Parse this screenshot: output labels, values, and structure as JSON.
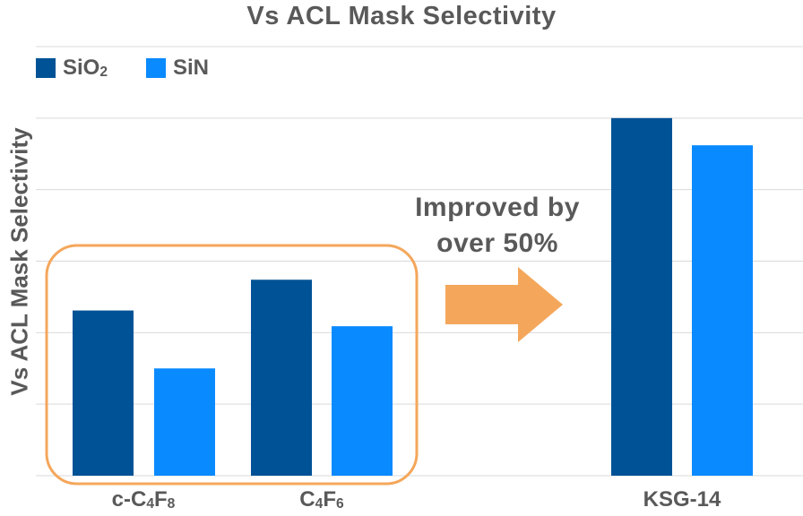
{
  "chart_data": {
    "type": "bar",
    "title": "Vs ACL Mask Selectivity",
    "ylabel": "Vs ACL Mask Selectivity",
    "xlabel": "",
    "categories": [
      {
        "base": "c-C",
        "s1": "4",
        "mid": "F",
        "s2": "8"
      },
      {
        "base": "C",
        "s1": "4",
        "mid": "F",
        "s2": "6"
      },
      {
        "base": "KSG-14",
        "s1": "",
        "mid": "",
        "s2": ""
      }
    ],
    "series": [
      {
        "name": {
          "base": "SiO",
          "sub": "2"
        },
        "color": "#005296",
        "values": [
          2.31,
          2.74,
          5.0
        ]
      },
      {
        "name": {
          "base": "SiN",
          "sub": ""
        },
        "color": "#0a8aff",
        "values": [
          1.5,
          2.09,
          4.62
        ]
      }
    ],
    "ylim": [
      0,
      6
    ],
    "grid": true,
    "legend_position": "top-left",
    "annotation": {
      "line1": "Improved by",
      "line2": "over 50%"
    },
    "highlight_box_color": "#f4a75b",
    "arrow_color": "#f4a75b"
  }
}
